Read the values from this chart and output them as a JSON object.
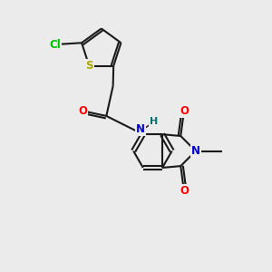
{
  "background_color": "#EBEBEB",
  "bond_color": "#1a1a1a",
  "bond_width": 1.5,
  "atom_colors": {
    "Cl": "#00BB00",
    "S": "#AAAA00",
    "O": "#FF0000",
    "N": "#0000CC",
    "H": "#007070",
    "C": "#1a1a1a"
  },
  "figsize": [
    3.0,
    3.0
  ],
  "dpi": 100
}
